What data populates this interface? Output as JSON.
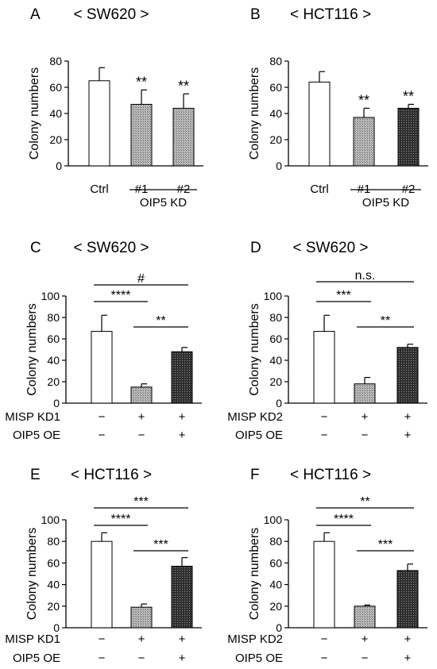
{
  "chart_data": [
    {
      "type": "bar",
      "panel": "A",
      "title": "< SW620 >",
      "ylabel": "Colony numbers",
      "ylim": [
        0,
        80
      ],
      "yticks": [
        0,
        20,
        40,
        60,
        80
      ],
      "categories": [
        "Ctrl",
        "#1",
        "#2"
      ],
      "values": [
        65,
        47,
        44
      ],
      "errors": [
        10,
        11,
        11
      ],
      "fills": [
        "white",
        "grey",
        "grey"
      ],
      "group_label": "OIP5 KD",
      "bar_labels": [
        "",
        "**",
        "**"
      ],
      "brackets": []
    },
    {
      "type": "bar",
      "panel": "B",
      "title": "< HCT116 >",
      "ylabel": "Colony numbers",
      "ylim": [
        0,
        80
      ],
      "yticks": [
        0,
        20,
        40,
        60,
        80
      ],
      "categories": [
        "Ctrl",
        "#1",
        "#2"
      ],
      "values": [
        64,
        37,
        44
      ],
      "errors": [
        8,
        7,
        3
      ],
      "fills": [
        "white",
        "grey",
        "dark"
      ],
      "group_label": "OIP5 KD",
      "bar_labels": [
        "",
        "**",
        "**"
      ],
      "brackets": []
    },
    {
      "type": "bar",
      "panel": "C",
      "title": "< SW620 >",
      "ylabel": "Colony numbers",
      "ylim": [
        0,
        100
      ],
      "yticks": [
        0,
        20,
        40,
        60,
        80,
        100
      ],
      "categories": [
        "",
        "",
        ""
      ],
      "values": [
        67,
        15,
        48
      ],
      "errors": [
        15,
        3,
        4
      ],
      "fills": [
        "white",
        "grey",
        "dark"
      ],
      "rows": [
        {
          "label": "MISP KD1",
          "marks": [
            "−",
            "+",
            "+"
          ]
        },
        {
          "label": "OIP5 OE",
          "marks": [
            "−",
            "−",
            "+"
          ]
        }
      ],
      "bar_labels": [
        "",
        "",
        ""
      ],
      "brackets": [
        {
          "from": 0,
          "to": 2,
          "label": "#"
        },
        {
          "from": 0,
          "to": 1,
          "label": "****"
        },
        {
          "from": 1,
          "to": 2,
          "label": "**"
        }
      ]
    },
    {
      "type": "bar",
      "panel": "D",
      "title": "< SW620 >",
      "ylabel": "Colony numbers",
      "ylim": [
        0,
        100
      ],
      "yticks": [
        0,
        20,
        40,
        60,
        80,
        100
      ],
      "categories": [
        "",
        "",
        ""
      ],
      "values": [
        67,
        18,
        52
      ],
      "errors": [
        15,
        6,
        3
      ],
      "fills": [
        "white",
        "grey",
        "dark"
      ],
      "rows": [
        {
          "label": "MISP KD2",
          "marks": [
            "−",
            "+",
            "+"
          ]
        },
        {
          "label": "OIP5 OE",
          "marks": [
            "−",
            "−",
            "+"
          ]
        }
      ],
      "bar_labels": [
        "",
        "",
        ""
      ],
      "brackets": [
        {
          "from": 0,
          "to": 2,
          "label": "n.s."
        },
        {
          "from": 0,
          "to": 1,
          "label": "***"
        },
        {
          "from": 1,
          "to": 2,
          "label": "**"
        }
      ]
    },
    {
      "type": "bar",
      "panel": "E",
      "title": "< HCT116 >",
      "ylabel": "Colony numbers",
      "ylim": [
        0,
        100
      ],
      "yticks": [
        0,
        20,
        40,
        60,
        80,
        100
      ],
      "categories": [
        "",
        "",
        ""
      ],
      "values": [
        80,
        19,
        57
      ],
      "errors": [
        8,
        3,
        8
      ],
      "fills": [
        "white",
        "grey",
        "dark"
      ],
      "rows": [
        {
          "label": "MISP KD1",
          "marks": [
            "−",
            "+",
            "+"
          ]
        },
        {
          "label": "OIP5 OE",
          "marks": [
            "−",
            "−",
            "+"
          ]
        }
      ],
      "bar_labels": [
        "",
        "",
        ""
      ],
      "brackets": [
        {
          "from": 0,
          "to": 2,
          "label": "***"
        },
        {
          "from": 0,
          "to": 1,
          "label": "****"
        },
        {
          "from": 1,
          "to": 2,
          "label": "***"
        }
      ]
    },
    {
      "type": "bar",
      "panel": "F",
      "title": "< HCT116 >",
      "ylabel": "Colony numbers",
      "ylim": [
        0,
        100
      ],
      "yticks": [
        0,
        20,
        40,
        60,
        80,
        100
      ],
      "categories": [
        "",
        "",
        ""
      ],
      "values": [
        80,
        20,
        53
      ],
      "errors": [
        8,
        1,
        6
      ],
      "fills": [
        "white",
        "grey",
        "dark"
      ],
      "rows": [
        {
          "label": "MISP KD2",
          "marks": [
            "−",
            "+",
            "+"
          ]
        },
        {
          "label": "OIP5 OE",
          "marks": [
            "−",
            "−",
            "+"
          ]
        }
      ],
      "bar_labels": [
        "",
        "",
        ""
      ],
      "brackets": [
        {
          "from": 0,
          "to": 2,
          "label": "**"
        },
        {
          "from": 0,
          "to": 1,
          "label": "****"
        },
        {
          "from": 1,
          "to": 2,
          "label": "***"
        }
      ]
    }
  ]
}
